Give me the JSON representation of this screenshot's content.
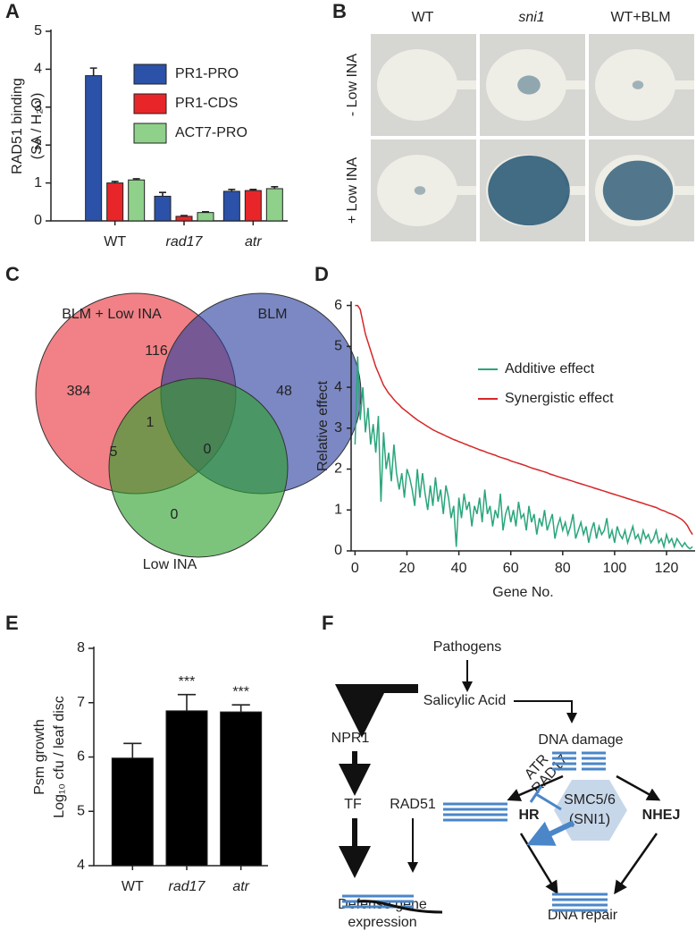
{
  "panel_labels": [
    "A",
    "B",
    "C",
    "D",
    "E",
    "F"
  ],
  "chart_data": [
    {
      "type": "bar",
      "ylabel": [
        "RAD51 binding",
        "(SA / H₂O)"
      ],
      "categories": [
        "WT",
        "rad17",
        "atr"
      ],
      "series": [
        {
          "name": "PR1-PRO",
          "color": "#2b52a8",
          "values": [
            3.83,
            0.65,
            0.78
          ],
          "errors": [
            0.2,
            0.1,
            0.05
          ]
        },
        {
          "name": "PR1-CDS",
          "color": "#e8262a",
          "values": [
            1.0,
            0.12,
            0.8
          ],
          "errors": [
            0.04,
            0.02,
            0.03
          ]
        },
        {
          "name": "ACT7-PRO",
          "color": "#8fd18a",
          "values": [
            1.08,
            0.22,
            0.85
          ],
          "errors": [
            0.03,
            0.02,
            0.05
          ]
        }
      ],
      "ylim": [
        0,
        5
      ],
      "yticks": [
        0,
        1,
        2,
        3,
        4,
        5
      ]
    },
    {
      "type": "venn",
      "sets": [
        {
          "name": "BLM + Low INA",
          "color": "#e8333c"
        },
        {
          "name": "BLM",
          "color": "#2a3f9e"
        },
        {
          "name": "Low INA",
          "color": "#2ca02c"
        }
      ],
      "values": [
        384,
        116,
        48,
        1,
        5,
        0,
        0
      ]
    },
    {
      "type": "line",
      "xlabel": "Gene No.",
      "ylabel": "Relative effect",
      "x": [
        0,
        1,
        2,
        3,
        4,
        5,
        6,
        7,
        8,
        9,
        10,
        11,
        12,
        13,
        14,
        15,
        16,
        17,
        18,
        19,
        20,
        21,
        22,
        23,
        24,
        25,
        26,
        27,
        28,
        29,
        30,
        31,
        32,
        33,
        34,
        35,
        36,
        37,
        38,
        39,
        40,
        41,
        42,
        43,
        44,
        45,
        46,
        47,
        48,
        49,
        50,
        51,
        52,
        53,
        54,
        55,
        56,
        57,
        58,
        59,
        60,
        61,
        62,
        63,
        64,
        65,
        66,
        67,
        68,
        69,
        70,
        71,
        72,
        73,
        74,
        75,
        76,
        77,
        78,
        79,
        80,
        81,
        82,
        83,
        84,
        85,
        86,
        87,
        88,
        89,
        90,
        91,
        92,
        93,
        94,
        95,
        96,
        97,
        98,
        99,
        100,
        101,
        102,
        103,
        104,
        105,
        106,
        107,
        108,
        109,
        110,
        111,
        112,
        113,
        114,
        115,
        116,
        117,
        118,
        119,
        120,
        121,
        122,
        123,
        124,
        125,
        126,
        127,
        128,
        129,
        130
      ],
      "series": [
        {
          "name": "Additive effect",
          "color": "#2aa67a",
          "values": [
            2.6,
            4.75,
            3.2,
            4.0,
            2.9,
            3.5,
            2.6,
            3.1,
            2.4,
            3.3,
            1.2,
            2.9,
            2.0,
            2.4,
            1.7,
            2.6,
            1.9,
            1.5,
            1.9,
            1.3,
            2.0,
            1.8,
            1.5,
            1.1,
            2.0,
            1.3,
            1.9,
            1.4,
            1.0,
            1.6,
            1.1,
            1.8,
            1.2,
            1.5,
            0.9,
            1.6,
            1.3,
            0.8,
            1.1,
            0.1,
            1.3,
            0.8,
            1.4,
            1.0,
            1.2,
            0.6,
            1.1,
            0.9,
            1.3,
            0.7,
            1.5,
            0.9,
            1.1,
            0.6,
            1.0,
            0.8,
            1.4,
            0.5,
            0.9,
            1.1,
            0.7,
            1.0,
            0.6,
            1.2,
            0.8,
            0.9,
            0.5,
            1.1,
            0.7,
            0.9,
            0.4,
            0.8,
            0.6,
            1.0,
            0.5,
            0.7,
            0.9,
            0.3,
            0.6,
            0.8,
            0.5,
            0.7,
            0.4,
            0.6,
            0.9,
            0.3,
            0.5,
            0.7,
            0.4,
            0.6,
            0.2,
            0.5,
            0.7,
            0.3,
            0.6,
            0.4,
            0.5,
            0.8,
            0.3,
            0.5,
            0.2,
            0.6,
            0.4,
            0.3,
            0.5,
            0.2,
            0.4,
            0.6,
            0.3,
            0.4,
            0.2,
            0.5,
            0.3,
            0.4,
            0.2,
            0.3,
            0.5,
            0.2,
            0.3,
            0.1,
            0.4,
            0.2,
            0.3,
            0.1,
            0.3,
            0.2,
            0.1,
            0.2,
            0.1,
            0.05,
            0.1
          ]
        },
        {
          "name": "Synergistic effect",
          "color": "#d62728",
          "values": [
            6.0,
            6.0,
            5.9,
            5.6,
            5.3,
            5.1,
            4.9,
            4.7,
            4.5,
            4.35,
            4.2,
            4.05,
            3.95,
            3.85,
            3.78,
            3.7,
            3.63,
            3.57,
            3.5,
            3.45,
            3.4,
            3.35,
            3.3,
            3.25,
            3.2,
            3.16,
            3.12,
            3.08,
            3.04,
            3.0,
            2.96,
            2.93,
            2.9,
            2.87,
            2.84,
            2.81,
            2.78,
            2.75,
            2.72,
            2.7,
            2.67,
            2.65,
            2.62,
            2.6,
            2.57,
            2.55,
            2.52,
            2.5,
            2.47,
            2.45,
            2.43,
            2.4,
            2.38,
            2.36,
            2.34,
            2.31,
            2.29,
            2.27,
            2.25,
            2.23,
            2.2,
            2.18,
            2.16,
            2.14,
            2.12,
            2.1,
            2.08,
            2.05,
            2.03,
            2.01,
            1.99,
            1.97,
            1.95,
            1.93,
            1.91,
            1.88,
            1.86,
            1.84,
            1.82,
            1.8,
            1.78,
            1.76,
            1.74,
            1.72,
            1.7,
            1.68,
            1.66,
            1.64,
            1.62,
            1.6,
            1.58,
            1.56,
            1.54,
            1.52,
            1.5,
            1.48,
            1.46,
            1.44,
            1.42,
            1.4,
            1.38,
            1.36,
            1.34,
            1.32,
            1.3,
            1.28,
            1.26,
            1.24,
            1.22,
            1.2,
            1.18,
            1.16,
            1.14,
            1.12,
            1.1,
            1.08,
            1.06,
            1.03,
            1.0,
            0.98,
            0.95,
            0.92,
            0.9,
            0.87,
            0.84,
            0.8,
            0.76,
            0.7,
            0.62,
            0.5,
            0.4
          ]
        }
      ],
      "xlim": [
        -1.5,
        131
      ],
      "xticks": [
        0,
        20,
        40,
        60,
        80,
        100,
        120
      ],
      "ylim": [
        0,
        6.1
      ],
      "yticks": [
        0,
        1,
        2,
        3,
        4,
        5,
        6
      ]
    },
    {
      "type": "bar",
      "ylabel": [
        "Psm growth",
        "Log₁₀ cfu / leaf disc"
      ],
      "categories": [
        "WT",
        "rad17",
        "atr"
      ],
      "color": "#000000",
      "values": [
        5.98,
        6.85,
        6.83
      ],
      "errors": [
        0.27,
        0.3,
        0.13
      ],
      "significance": [
        null,
        "***",
        "***"
      ],
      "ylim": [
        4,
        8
      ],
      "yticks": [
        4,
        5,
        6,
        7,
        8
      ]
    }
  ],
  "image_panel": {
    "columns": [
      "WT",
      "sni1",
      "WT+BLM"
    ],
    "rows": [
      "- Low INA",
      "+ Low INA"
    ]
  },
  "diagram": {
    "nodes": [
      "Pathogens",
      "Salicylic Acid",
      "NPR1",
      "TF",
      "RAD51",
      "Defense gene",
      "expression",
      "DNA damage",
      "ATR",
      "RAD17",
      "HR",
      "SMC5/6",
      "(SNI1)",
      "NHEJ",
      "DNA repair"
    ]
  }
}
